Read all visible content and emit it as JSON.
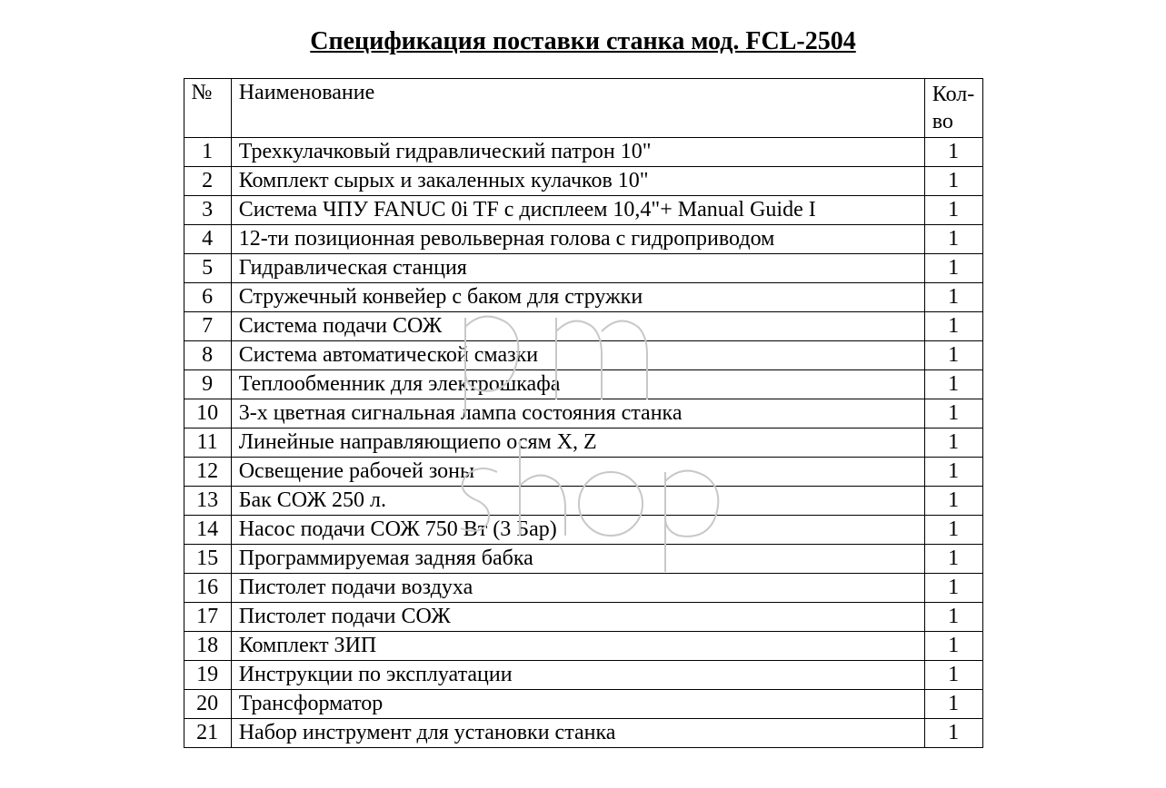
{
  "title": "Спецификация поставки станка мод. FCL-2504",
  "columns": {
    "num": "№",
    "name": "Наименование",
    "qty": "Кол-во"
  },
  "rows": [
    {
      "num": "1",
      "name": "Трехкулачковый гидравлический патрон 10\"",
      "qty": "1"
    },
    {
      "num": "2",
      "name": "Комплект сырых и закаленных кулачков 10\"",
      "qty": "1"
    },
    {
      "num": "3",
      "name": "Система ЧПУ FANUC 0i TF с дисплеем 10,4\"+ Manual Guide I",
      "qty": "1"
    },
    {
      "num": "4",
      "name": "12-ти позиционная револьверная голова с гидроприводом",
      "qty": "1"
    },
    {
      "num": "5",
      "name": "Гидравлическая станция",
      "qty": "1"
    },
    {
      "num": "6",
      "name": "Стружечный конвейер с баком для стружки",
      "qty": "1"
    },
    {
      "num": "7",
      "name": "Система подачи СОЖ",
      "qty": "1"
    },
    {
      "num": "8",
      "name": "Система автоматической смазки",
      "qty": "1"
    },
    {
      "num": "9",
      "name": "Теплообменник для электрошкафа",
      "qty": "1"
    },
    {
      "num": "10",
      "name": "3-х цветная сигнальная лампа состояния станка",
      "qty": "1"
    },
    {
      "num": "11",
      "name": "Линейные направляющиепо осям X, Z",
      "qty": "1"
    },
    {
      "num": "12",
      "name": "Освещение рабочей зоны",
      "qty": "1"
    },
    {
      "num": "13",
      "name": "Бак СОЖ  250 л.",
      "qty": "1"
    },
    {
      "num": "14",
      "name": "Насос подачи СОЖ 750 Вт (3 Бар)",
      "qty": "1"
    },
    {
      "num": "15",
      "name": "Программируемая задняя бабка",
      "qty": "1"
    },
    {
      "num": "16",
      "name": "Пистолет подачи воздуха",
      "qty": "1"
    },
    {
      "num": "17",
      "name": "Пистолет подачи СОЖ",
      "qty": "1"
    },
    {
      "num": "18",
      "name": "Комплект ЗИП",
      "qty": "1"
    },
    {
      "num": "19",
      "name": "Инструкции по эксплуатации",
      "qty": "1"
    },
    {
      "num": "20",
      "name": "Трансформатор",
      "qty": "1"
    },
    {
      "num": "21",
      "name": "Набор инструмент для установки станка",
      "qty": "1"
    }
  ],
  "watermark": {
    "stroke_color": "#c8c8c8",
    "stroke_width": 2
  },
  "style": {
    "background_color": "#ffffff",
    "text_color": "#000000",
    "border_color": "#000000",
    "title_fontsize": 28,
    "cell_fontsize": 24,
    "font_family": "Times New Roman"
  }
}
